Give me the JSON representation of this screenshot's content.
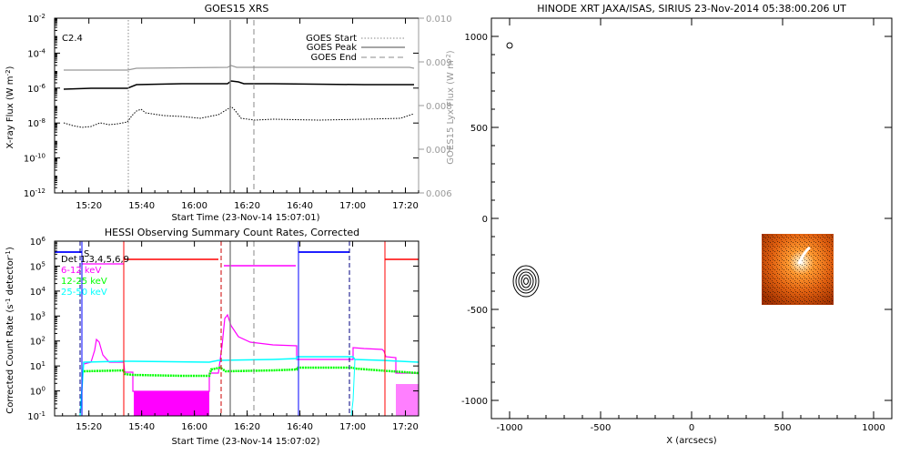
{
  "goes": {
    "title": "GOES15 XRS",
    "ylabel": "X-ray Flux (W m",
    "ylabel_sup": "-2",
    "ylabel_end": ")",
    "y2label": "GOES15 Lyx Flux (W m",
    "y2label_sup": "-2",
    "y2label_end": ")",
    "xlabel": "Start Time (23-Nov-14 15:07:01)",
    "class_label": "C2.4",
    "legend": [
      "GOES Start",
      "GOES Peak",
      "GOES End"
    ],
    "yticks": [
      {
        "base": "10",
        "exp": "-2",
        "v": -2
      },
      {
        "base": "10",
        "exp": "-4",
        "v": -4
      },
      {
        "base": "10",
        "exp": "-6",
        "v": -6
      },
      {
        "base": "10",
        "exp": "-8",
        "v": -8
      },
      {
        "base": "10",
        "exp": "-10",
        "v": -10
      },
      {
        "base": "10",
        "exp": "-12",
        "v": -12
      }
    ],
    "y2ticks": [
      "0.010",
      "0.009",
      "0.008",
      "0.007",
      "0.006"
    ],
    "xticks": [
      "15:20",
      "15:40",
      "16:00",
      "16:20",
      "16:40",
      "17:00",
      "17:20"
    ]
  },
  "hessi": {
    "title": "HESSI Observing Summary Count Rates, Corrected",
    "ylabel": "Corrected Count Rate (s",
    "ylabel_sup": "-1",
    "ylabel_end": " detector",
    "ylabel_sup2": "-1",
    "ylabel_end2": ")",
    "xlabel": "Start Time (23-Nov-14 15:07:02)",
    "det_label": "Det 1,3,4,5,6,9",
    "s_label": "S",
    "bands": [
      {
        "label": "6-12 keV",
        "color": "#ff00ff"
      },
      {
        "label": "12-25 keV",
        "color": "#00ff00"
      },
      {
        "label": "25-50 keV",
        "color": "#00ffff"
      }
    ],
    "yticks": [
      {
        "base": "10",
        "exp": "6",
        "v": 6
      },
      {
        "base": "10",
        "exp": "5",
        "v": 5
      },
      {
        "base": "10",
        "exp": "4",
        "v": 4
      },
      {
        "base": "10",
        "exp": "3",
        "v": 3
      },
      {
        "base": "10",
        "exp": "2",
        "v": 2
      },
      {
        "base": "10",
        "exp": "1",
        "v": 1
      },
      {
        "base": "10",
        "exp": "0",
        "v": 0
      },
      {
        "base": "10",
        "exp": "-1",
        "v": -1
      }
    ],
    "xticks": [
      "15:20",
      "15:40",
      "16:00",
      "16:20",
      "16:40",
      "17:00",
      "17:20"
    ]
  },
  "xrt": {
    "title": "HINODE XRT JAXA/ISAS, SIRIUS 23-Nov-2014 05:38:00.206 UT",
    "xlabel": "X (arcsecs)",
    "xticks": [
      "-1000",
      "-500",
      "0",
      "500",
      "1000"
    ],
    "yticks": [
      "1000",
      "500",
      "0",
      "-500",
      "-1000"
    ]
  },
  "chart_data": [
    {
      "type": "line",
      "title": "GOES15 XRS",
      "xlabel": "Start Time (23-Nov-14 15:07:01)",
      "ylabel": "X-ray Flux (W m^-2)",
      "y2label": "GOES15 Lyx Flux (W m^-2)",
      "scale": "log",
      "xlim": [
        "15:07",
        "17:25"
      ],
      "ylim": [
        1e-12,
        0.01
      ],
      "y2lim": [
        0.006,
        0.01
      ],
      "markers": {
        "GOES Start": "15:36",
        "GOES Peak": "16:14",
        "GOES End": "16:23"
      },
      "series": [
        {
          "name": "Lyx",
          "color": "#999999",
          "axis": "right",
          "x": [
            "15:07",
            "15:36",
            "15:45",
            "16:10",
            "16:14",
            "16:25",
            "17:23"
          ],
          "y": [
            0.00886,
            0.00886,
            0.00892,
            0.00893,
            0.00898,
            0.00893,
            0.00893
          ]
        },
        {
          "color": "#000000",
          "x": [
            "15:07",
            "15:36",
            "15:45",
            "16:10",
            "16:14",
            "16:25",
            "17:23"
          ],
          "y": [
            1.1e-06,
            1.15e-06,
            1.6e-06,
            1.7e-06,
            2.4e-06,
            1.6e-06,
            1.4e-06
          ]
        },
        {
          "color": "#000000",
          "dotted": true,
          "x": [
            "15:07",
            "15:20",
            "15:36",
            "15:44",
            "16:05",
            "16:13",
            "16:25",
            "17:10",
            "17:23"
          ],
          "y": [
            3e-09,
            1.8e-09,
            3e-09,
            3e-08,
            1.4e-08,
            6e-08,
            6e-09,
            7e-09,
            1.3e-08
          ]
        }
      ]
    },
    {
      "type": "line",
      "title": "HESSI Observing Summary Count Rates, Corrected",
      "xlabel": "Start Time (23-Nov-14 15:07:02)",
      "ylabel": "Corrected Count Rate (s^-1 detector^-1)",
      "scale": "log",
      "xlim": [
        "15:07",
        "17:25"
      ],
      "ylim": [
        0.1,
        1000000.0
      ],
      "series": [
        {
          "name": "6-12 keV",
          "color": "#ff00ff",
          "x": [
            "15:22",
            "15:25",
            "15:27",
            "15:30",
            "15:36",
            "15:41",
            "16:06",
            "16:10",
            "16:12",
            "16:14",
            "16:18",
            "16:38",
            "16:57",
            "17:04",
            "17:08"
          ],
          "y": [
            5,
            8,
            150,
            20,
            12,
            1,
            1,
            10,
            100,
            1000,
            150,
            70,
            60,
            50,
            45
          ]
        },
        {
          "name": "12-25 keV",
          "color": "#00ff00",
          "x": [
            "15:22",
            "15:36",
            "15:45",
            "16:08",
            "16:12",
            "16:38",
            "16:57",
            "17:20"
          ],
          "y": [
            6,
            5,
            4,
            4,
            7,
            8,
            8,
            5
          ]
        },
        {
          "name": "25-50 keV",
          "color": "#00ffff",
          "x": [
            "15:22",
            "15:36",
            "16:00",
            "16:38",
            "16:57",
            "17:20"
          ],
          "y": [
            16,
            17,
            17,
            22,
            17,
            15
          ]
        }
      ]
    }
  ]
}
